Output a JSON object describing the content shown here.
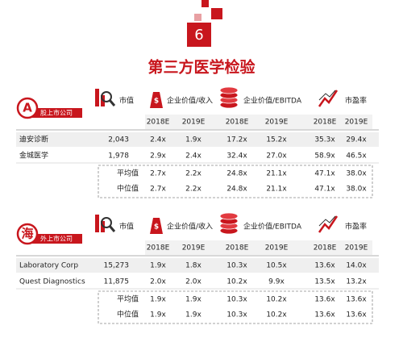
{
  "logo_number": "6",
  "title": "第三方医学检验",
  "sections": [
    {
      "badge": "A",
      "badge_label": "股上市公司",
      "metrics": [
        "市值",
        "企业价值/收入",
        "企业价值/EBITDA",
        "市盈率"
      ],
      "years": [
        "2018E",
        "2019E",
        "2018E",
        "2019E",
        "2018E",
        "2019E"
      ],
      "rows": [
        {
          "name": "迪安诊断",
          "values": [
            "2,043",
            "2.4x",
            "1.9x",
            "17.2x",
            "15.2x",
            "35.3x",
            "29.4x"
          ]
        },
        {
          "name": "金城医学",
          "values": [
            "1,978",
            "2.9x",
            "2.4x",
            "32.4x",
            "27.0x",
            "58.9x",
            "46.5x"
          ]
        }
      ],
      "stats": [
        {
          "name": "平均值",
          "values": [
            "2.7x",
            "2.2x",
            "24.8x",
            "21.1x",
            "47.1x",
            "38.0x"
          ]
        },
        {
          "name": "中位值",
          "values": [
            "2.7x",
            "2.2x",
            "24.8x",
            "21.1x",
            "47.1x",
            "38.0x"
          ]
        }
      ]
    },
    {
      "badge": "海",
      "badge_label": "外上市公司",
      "metrics": [
        "市值",
        "企业价值/收入",
        "企业价值/EBITDA",
        "市盈率"
      ],
      "years": [
        "2018E",
        "2019E",
        "2018E",
        "2019E",
        "2018E",
        "2019E"
      ],
      "rows": [
        {
          "name": "Laboratory Corp",
          "values": [
            "15,273",
            "1.9x",
            "1.8x",
            "10.3x",
            "10.5x",
            "13.6x",
            "14.0x"
          ]
        },
        {
          "name": "Quest Diagnostics",
          "values": [
            "11,875",
            "2.0x",
            "2.0x",
            "10.2x",
            "9.9x",
            "13.5x",
            "13.2x"
          ]
        }
      ],
      "stats": [
        {
          "name": "平均值",
          "values": [
            "1.9x",
            "1.9x",
            "10.3x",
            "10.2x",
            "13.6x",
            "13.6x"
          ]
        },
        {
          "name": "中位值",
          "values": [
            "1.9x",
            "1.9x",
            "10.3x",
            "10.2x",
            "13.6x",
            "13.6x"
          ]
        }
      ]
    }
  ]
}
